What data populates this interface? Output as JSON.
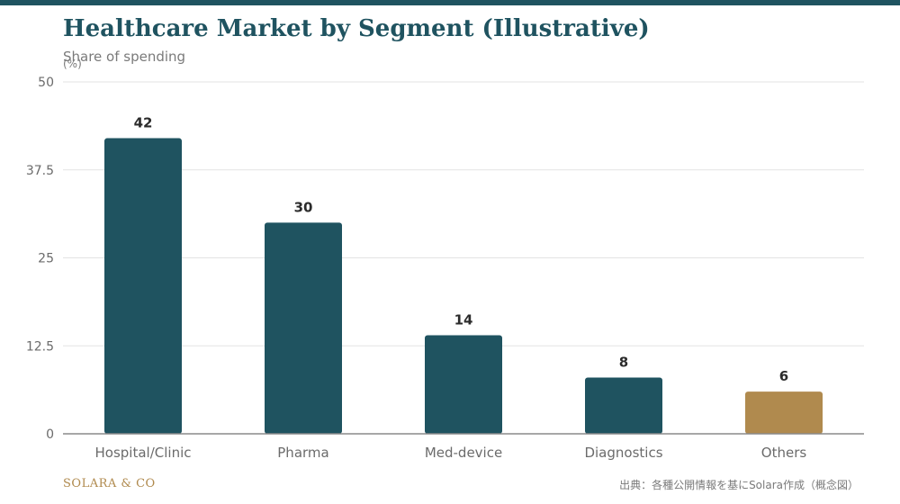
{
  "header": {
    "title": "Healthcare Market by Segment (Illustrative)",
    "subtitle": "Share of spending"
  },
  "footer": {
    "brand": "SOLARA & CO",
    "source": "出典：各種公開情報を基にSolara作成（概念図）"
  },
  "colors": {
    "primary_bar": "#1f5360",
    "highlight_bar": "#b08a4e"
  },
  "chart_data": {
    "type": "bar",
    "title": "Healthcare Market by Segment (Illustrative)",
    "subtitle": "Share of spending",
    "ylabel": "(%)",
    "xlabel": "",
    "categories": [
      "Hospital/Clinic",
      "Pharma",
      "Med-device",
      "Diagnostics",
      "Others"
    ],
    "values": [
      42,
      30,
      14,
      8,
      6
    ],
    "highlight_index": 4,
    "ylim": [
      0,
      50
    ],
    "yticks": [
      0,
      12.5,
      25,
      37.5,
      50
    ],
    "ytick_labels": [
      "0",
      "12.5",
      "25",
      "37.5",
      "50"
    ],
    "data_labels": [
      "42",
      "30",
      "14",
      "8",
      "6"
    ],
    "grid": true,
    "legend": "none"
  }
}
